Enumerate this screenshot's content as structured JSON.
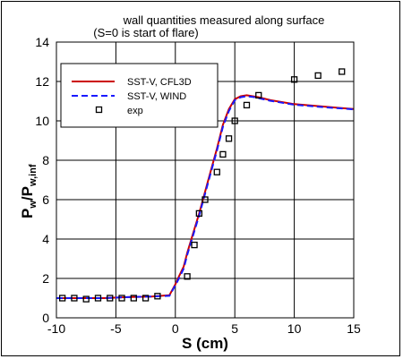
{
  "chart_data": {
    "type": "line",
    "title_line1": "wall quantities measured along surface",
    "title_line2": "(S=0 is start of flare)",
    "xlabel": "S (cm)",
    "ylabel_main": "P",
    "ylabel_sub1": "w",
    "ylabel_slash": "/P",
    "ylabel_sub2": "w,inf",
    "xlim": [
      -10,
      15
    ],
    "ylim": [
      0,
      14
    ],
    "xticks": [
      -10,
      -5,
      0,
      5,
      10,
      15
    ],
    "yticks": [
      0,
      2,
      4,
      6,
      8,
      10,
      12,
      14
    ],
    "grid": true,
    "legend_position": "top-left",
    "series": [
      {
        "name": "SST-V, CFL3D",
        "style": "solid",
        "color": "#cc0000",
        "x": [
          -10,
          -8,
          -6,
          -4,
          -2,
          -0.5,
          0,
          0.3,
          0.7,
          1.0,
          1.5,
          2.0,
          2.5,
          3.0,
          3.5,
          4.0,
          4.5,
          5.0,
          5.5,
          6.0,
          6.5,
          7.0,
          8.0,
          9.0,
          10.0,
          11.0,
          12.0,
          13.0,
          14.0,
          15.0
        ],
        "y": [
          1.0,
          1.0,
          1.0,
          1.05,
          1.08,
          1.15,
          1.7,
          2.1,
          2.6,
          3.3,
          4.3,
          5.3,
          6.4,
          7.5,
          8.6,
          9.8,
          10.6,
          11.1,
          11.25,
          11.3,
          11.25,
          11.2,
          11.05,
          10.95,
          10.85,
          10.8,
          10.75,
          10.7,
          10.65,
          10.6
        ]
      },
      {
        "name": "SST-V, WIND",
        "style": "dashed",
        "color": "#1a1aff",
        "x": [
          -10,
          -8,
          -6,
          -4,
          -2,
          -0.5,
          0,
          0.3,
          0.7,
          1.0,
          1.5,
          2.0,
          2.5,
          3.0,
          3.5,
          4.0,
          4.5,
          5.0,
          5.5,
          6.0,
          6.5,
          7.0,
          8.0,
          9.0,
          10.0,
          11.0,
          12.0,
          13.0,
          14.0,
          15.0
        ],
        "y": [
          1.0,
          1.0,
          1.0,
          1.05,
          1.08,
          1.12,
          1.65,
          2.0,
          2.5,
          3.2,
          4.2,
          5.2,
          6.3,
          7.4,
          8.5,
          9.7,
          10.5,
          11.05,
          11.2,
          11.25,
          11.22,
          11.15,
          11.02,
          10.92,
          10.82,
          10.77,
          10.72,
          10.67,
          10.63,
          10.58
        ]
      },
      {
        "name": "exp",
        "style": "markers",
        "color": "#000000",
        "x": [
          -9.5,
          -8.5,
          -7.5,
          -6.5,
          -5.5,
          -4.5,
          -3.5,
          -2.5,
          -1.5,
          1.0,
          1.6,
          2.0,
          2.5,
          3.5,
          4.0,
          4.5,
          5.0,
          6.0,
          7.0,
          10.0,
          12.0,
          14.0
        ],
        "y": [
          1.0,
          1.0,
          0.95,
          1.0,
          1.0,
          1.0,
          1.0,
          1.0,
          1.1,
          2.1,
          3.7,
          5.3,
          6.0,
          7.4,
          8.3,
          9.1,
          10.0,
          10.8,
          11.3,
          12.1,
          12.3,
          12.5
        ]
      }
    ]
  }
}
